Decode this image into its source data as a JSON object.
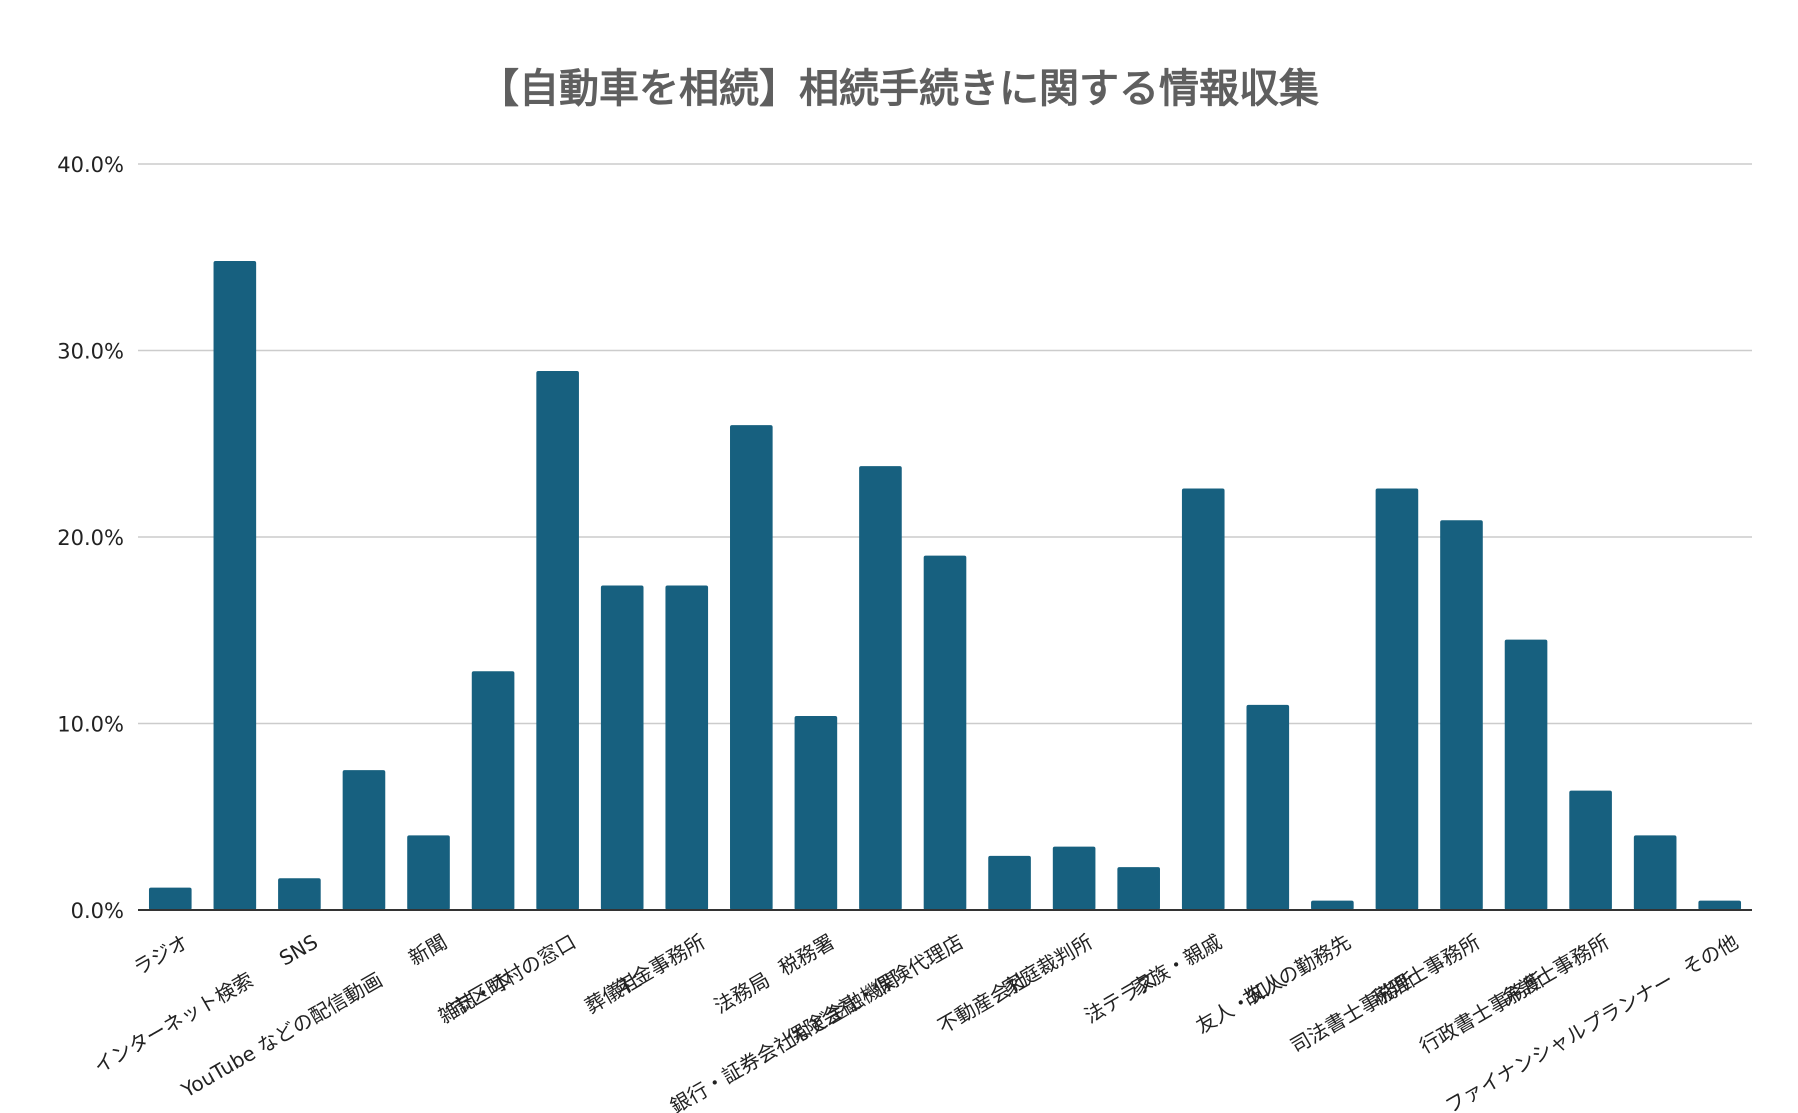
{
  "chart_data": {
    "type": "bar",
    "title": "【自動車を相続】相続手続きに関する情報収集",
    "xlabel": "",
    "ylabel": "",
    "ylim": [
      0,
      40
    ],
    "y_ticks": [
      "0.0%",
      "10.0%",
      "20.0%",
      "30.0%",
      "40.0%"
    ],
    "grid": true,
    "legend": "none",
    "bar_color": "#17607f",
    "categories": [
      "ラジオ",
      "インターネット検索",
      "SNS",
      "YouTube などの配信動画",
      "新聞",
      "雑誌・本",
      "市区町村の窓口",
      "葬儀社",
      "年金事務所",
      "法務局",
      "税務署",
      "銀行・証券会社など金融機関",
      "保険会社・保険代理店",
      "不動産会社",
      "家庭裁判所",
      "法テラス",
      "家族・親戚",
      "友人・知人",
      "故人の勤務先",
      "司法書士事務所",
      "税理士事務所",
      "行政書士事務所",
      "弁護士事務所",
      "ファイナンシャルプランナー",
      "その他"
    ],
    "values": [
      1.2,
      34.8,
      1.7,
      7.5,
      4.0,
      12.8,
      28.9,
      17.4,
      17.4,
      26.0,
      10.4,
      23.8,
      19.0,
      2.9,
      3.4,
      2.3,
      22.6,
      11.0,
      0.5,
      22.6,
      20.9,
      14.5,
      6.4,
      4.0,
      0.5
    ]
  }
}
